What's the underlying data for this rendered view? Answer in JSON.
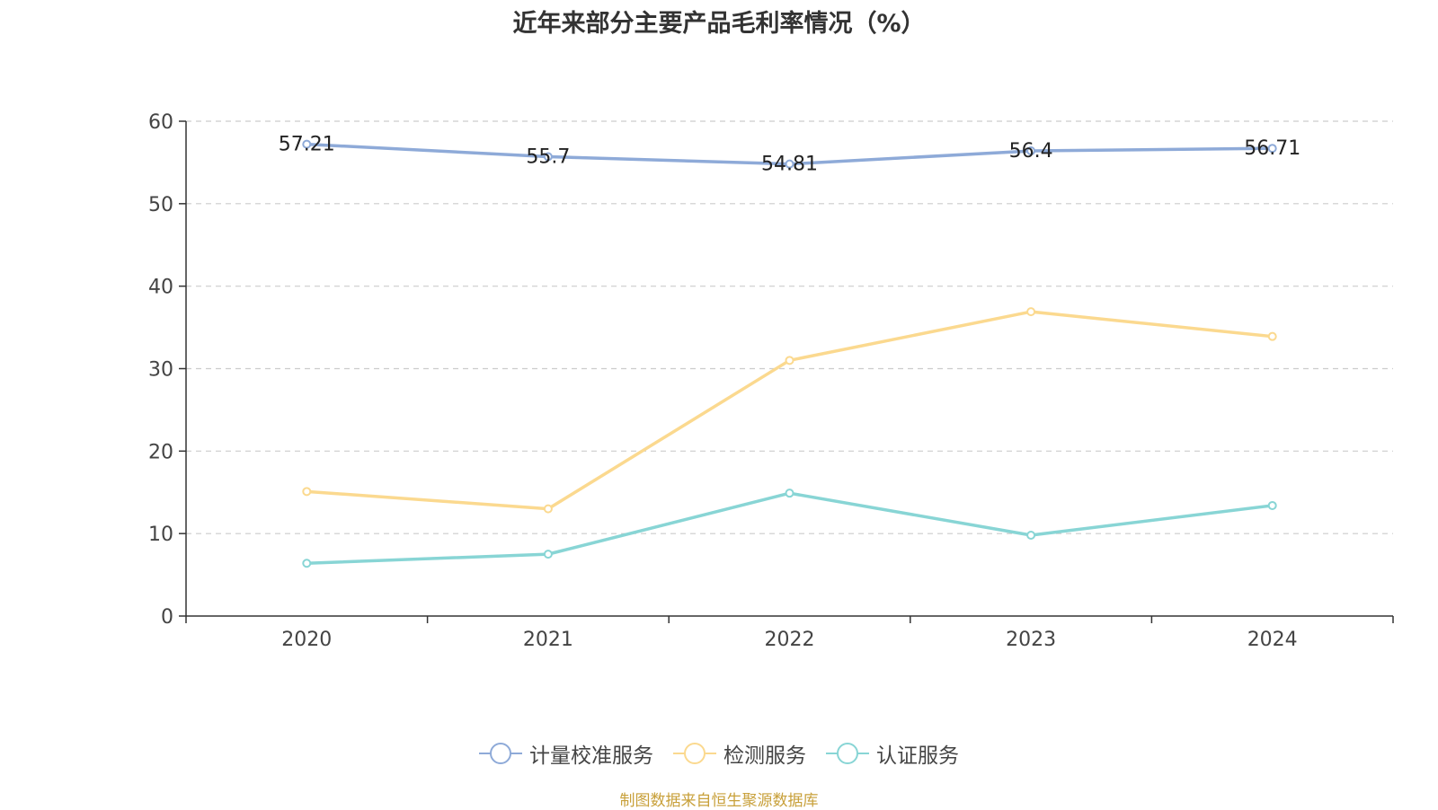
{
  "chart_data": {
    "type": "line",
    "title": "近年来部分主要产品毛利率情况（%）",
    "categories": [
      "2020",
      "2021",
      "2022",
      "2023",
      "2024"
    ],
    "ylim": [
      0,
      60
    ],
    "yticks": [
      0,
      10,
      20,
      30,
      40,
      50,
      60
    ],
    "grid": true,
    "legend_position": "bottom",
    "series": [
      {
        "name": "计量校准服务",
        "color": "#8eaad8",
        "values": [
          57.21,
          55.7,
          54.81,
          56.4,
          56.71
        ],
        "show_labels": true
      },
      {
        "name": "检测服务",
        "color": "#fbd98f",
        "values": [
          15.1,
          13.0,
          31.0,
          36.9,
          33.9
        ],
        "show_labels": false
      },
      {
        "name": "认证服务",
        "color": "#88d5d5",
        "values": [
          6.4,
          7.5,
          14.9,
          9.8,
          13.4
        ],
        "show_labels": false
      }
    ]
  },
  "source": "制图数据来自恒生聚源数据库"
}
